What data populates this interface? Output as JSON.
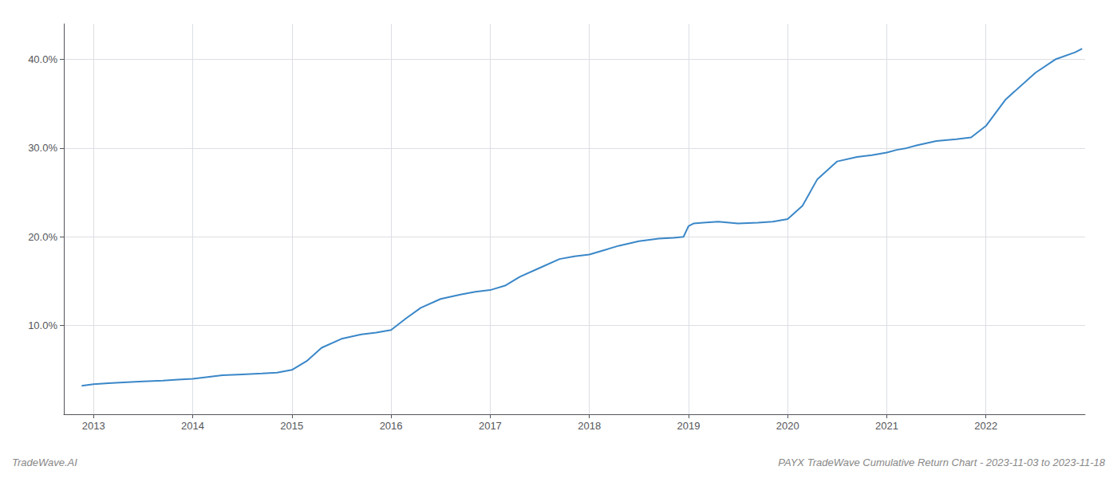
{
  "chart_data": {
    "type": "line",
    "title": "PAYX TradeWave Cumulative Return Chart - 2023-11-03 to 2023-11-18",
    "annotations": [
      "TradeWave.AI"
    ],
    "color": "#3a87c8",
    "grid": true,
    "x": [
      2012.88,
      2013.0,
      2013.15,
      2013.3,
      2013.5,
      2013.7,
      2013.85,
      2014.0,
      2014.15,
      2014.3,
      2014.5,
      2014.7,
      2014.85,
      2015.0,
      2015.15,
      2015.3,
      2015.5,
      2015.7,
      2015.85,
      2016.0,
      2016.15,
      2016.3,
      2016.5,
      2016.7,
      2016.85,
      2017.0,
      2017.15,
      2017.3,
      2017.5,
      2017.7,
      2017.85,
      2018.0,
      2018.15,
      2018.3,
      2018.5,
      2018.7,
      2018.85,
      2018.95,
      2019.0,
      2019.05,
      2019.15,
      2019.3,
      2019.5,
      2019.7,
      2019.85,
      2020.0,
      2020.15,
      2020.3,
      2020.5,
      2020.7,
      2020.85,
      2021.0,
      2021.1,
      2021.2,
      2021.3,
      2021.5,
      2021.7,
      2021.85,
      2022.0,
      2022.2,
      2022.5,
      2022.7,
      2022.9,
      2022.97
    ],
    "values": [
      3.2,
      3.4,
      3.5,
      3.6,
      3.7,
      3.8,
      3.9,
      4.0,
      4.2,
      4.4,
      4.5,
      4.6,
      4.7,
      5.0,
      6.0,
      7.5,
      8.5,
      9.0,
      9.2,
      9.5,
      10.8,
      12.0,
      13.0,
      13.5,
      13.8,
      14.0,
      14.5,
      15.5,
      16.5,
      17.5,
      17.8,
      18.0,
      18.5,
      19.0,
      19.5,
      19.8,
      19.9,
      20.0,
      21.2,
      21.5,
      21.6,
      21.7,
      21.5,
      21.6,
      21.7,
      22.0,
      23.5,
      26.5,
      28.5,
      29.0,
      29.2,
      29.5,
      29.8,
      30.0,
      30.3,
      30.8,
      31.0,
      31.2,
      32.5,
      35.5,
      38.5,
      40.0,
      40.8,
      41.2
    ],
    "xlim": [
      2012.7,
      2023.0
    ],
    "xticks": [
      2013,
      2014,
      2015,
      2016,
      2017,
      2018,
      2019,
      2020,
      2021,
      2022
    ],
    "ylim": [
      0,
      44
    ],
    "yticks": [
      {
        "value": 10.0,
        "label": "10.0%"
      },
      {
        "value": 20.0,
        "label": "20.0%"
      },
      {
        "value": 30.0,
        "label": "30.0%"
      },
      {
        "value": 40.0,
        "label": "40.0%"
      }
    ]
  }
}
